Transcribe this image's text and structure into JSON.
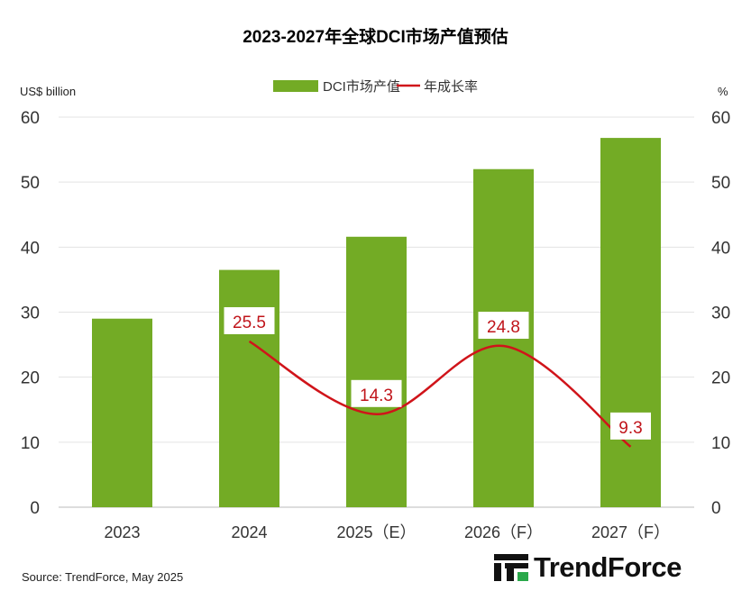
{
  "chart_data": {
    "type": "bar",
    "title": "2023-2027年全球DCI市场产值预估",
    "categories": [
      "2023",
      "2024",
      "2025（E）",
      "2026（F）",
      "2027（F）"
    ],
    "series": [
      {
        "name": "DCI市场产值",
        "type": "bar",
        "axis": "left",
        "color": "#73ab25",
        "values": [
          29.0,
          36.5,
          41.6,
          52.0,
          56.8
        ]
      },
      {
        "name": "年成长率",
        "type": "line",
        "axis": "right",
        "color": "#d0141a",
        "values": [
          null,
          25.5,
          14.3,
          24.8,
          9.3
        ],
        "labels": [
          "",
          "25.5",
          "14.3",
          "24.8",
          "9.3"
        ]
      }
    ],
    "ylabel_left": "US$ billion",
    "ylabel_right": "%",
    "ylim": [
      0,
      60
    ],
    "yticks": [
      0,
      10,
      20,
      30,
      40,
      50,
      60
    ],
    "grid": true,
    "legend": "top-center"
  },
  "footer": {
    "source": "Source: TrendForce, May 2025",
    "logo": "TrendForce"
  }
}
